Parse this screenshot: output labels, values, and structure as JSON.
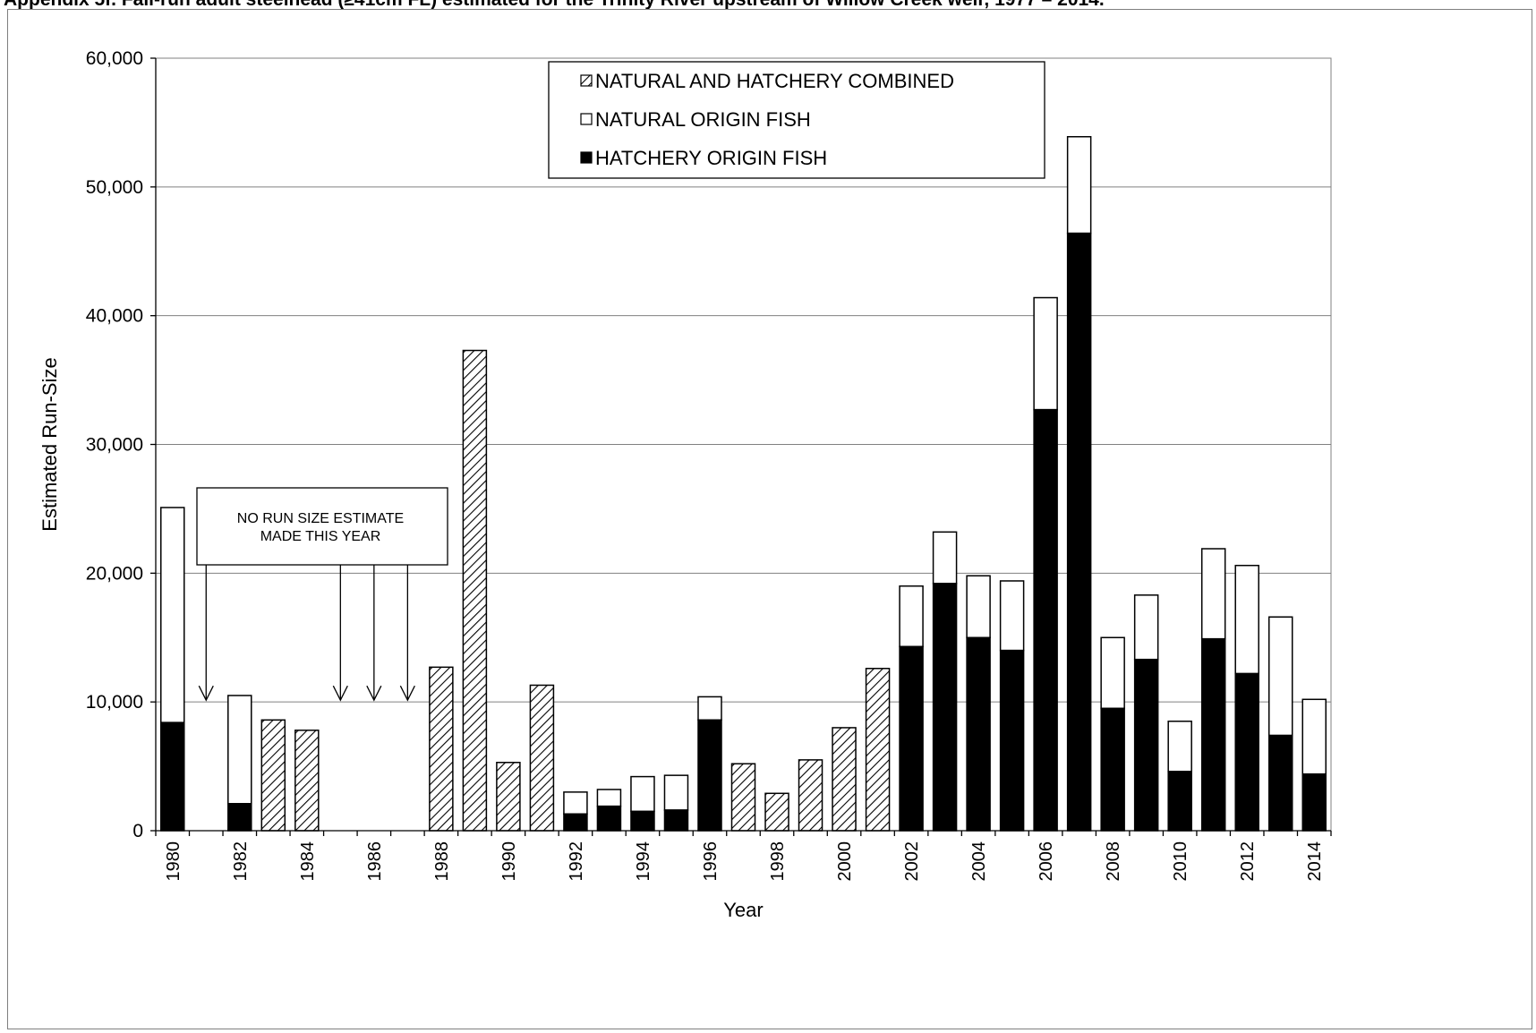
{
  "caption": "Appendix 5f. Fall-run adult steelhead (≥41cm FL) estimated for the Trinity River upstream of Willow Creek weir, 1977 – 2014.",
  "chart_data": {
    "type": "bar",
    "stacked": true,
    "xlabel": "Year",
    "ylabel": "Estimated Run-Size",
    "ylim": [
      0,
      60000
    ],
    "yticks": [
      0,
      10000,
      20000,
      30000,
      40000,
      50000,
      60000
    ],
    "ytick_labels": [
      "0",
      "10,000",
      "20,000",
      "30,000",
      "40,000",
      "50,000",
      "60,000"
    ],
    "xtick_labels": [
      "1980",
      "1982",
      "1984",
      "1986",
      "1988",
      "1990",
      "1992",
      "1994",
      "1996",
      "1998",
      "2000",
      "2002",
      "2004",
      "2006",
      "2008",
      "2010",
      "2012",
      "2014"
    ],
    "grid": "horizontal",
    "legend": {
      "placement": "top-center",
      "entries": [
        {
          "label": "NATURAL AND HATCHERY COMBINED",
          "pattern": "hatched"
        },
        {
          "label": "NATURAL ORIGIN FISH",
          "pattern": "white"
        },
        {
          "label": "HATCHERY ORIGIN FISH",
          "pattern": "black"
        }
      ]
    },
    "annotation": {
      "text_lines": [
        "NO RUN SIZE ESTIMATE",
        "MADE THIS YEAR"
      ],
      "years": [
        1981,
        1985,
        1986,
        1987
      ]
    },
    "categories": [
      1980,
      1981,
      1982,
      1983,
      1984,
      1985,
      1986,
      1987,
      1988,
      1989,
      1990,
      1991,
      1992,
      1993,
      1994,
      1995,
      1996,
      1997,
      1998,
      1999,
      2000,
      2001,
      2002,
      2003,
      2004,
      2005,
      2006,
      2007,
      2008,
      2009,
      2010,
      2011,
      2012,
      2013,
      2014
    ],
    "series": [
      {
        "name": "HATCHERY ORIGIN FISH",
        "values": [
          8400,
          null,
          2100,
          null,
          null,
          null,
          null,
          null,
          null,
          null,
          null,
          null,
          1300,
          1900,
          1500,
          1600,
          8600,
          null,
          null,
          null,
          null,
          null,
          14300,
          19200,
          15000,
          14000,
          32700,
          46400,
          9500,
          13300,
          4600,
          14900,
          12200,
          7400,
          4400
        ]
      },
      {
        "name": "NATURAL ORIGIN FISH",
        "values": [
          16700,
          null,
          8400,
          null,
          null,
          null,
          null,
          null,
          null,
          null,
          null,
          null,
          1700,
          1300,
          2700,
          2700,
          1800,
          null,
          null,
          null,
          null,
          null,
          4700,
          4000,
          4800,
          5400,
          8700,
          7500,
          5500,
          5000,
          3900,
          7000,
          8400,
          9200,
          5800
        ]
      },
      {
        "name": "NATURAL AND HATCHERY COMBINED",
        "values": [
          null,
          null,
          null,
          8600,
          7800,
          null,
          null,
          null,
          12700,
          37300,
          5300,
          11300,
          null,
          null,
          null,
          null,
          null,
          5200,
          2900,
          5500,
          8000,
          12600,
          null,
          null,
          null,
          null,
          null,
          null,
          null,
          null,
          null,
          null,
          null,
          null,
          null
        ]
      }
    ]
  }
}
